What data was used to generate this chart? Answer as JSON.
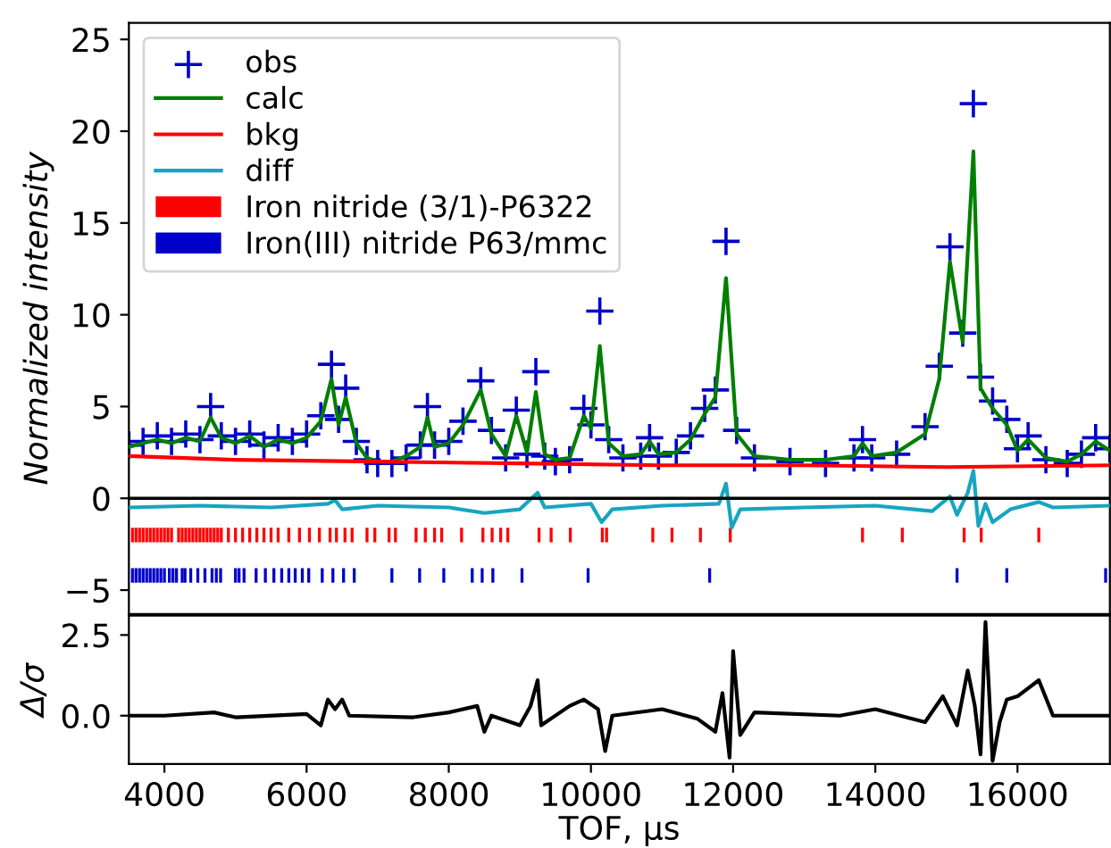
{
  "chart_data": [
    {
      "type": "line",
      "ylabel": "Normalized intensity",
      "xlim": [
        3500,
        17300
      ],
      "ylim": [
        -6.3,
        25.9
      ],
      "xticks": [
        4000,
        6000,
        8000,
        10000,
        12000,
        14000,
        16000
      ],
      "yticks": [
        {
          "value": -5,
          "label": "−5"
        },
        0,
        5,
        10,
        15,
        20,
        25
      ],
      "tick_labels": "y",
      "legend": "top left",
      "grid": false,
      "x": [
        3500,
        3700,
        3900,
        4100,
        4300,
        4500,
        4650,
        4800,
        5000,
        5200,
        5400,
        5600,
        5800,
        6000,
        6200,
        6350,
        6450,
        6550,
        6700,
        6850,
        7000,
        7200,
        7400,
        7600,
        7700,
        7800,
        8000,
        8200,
        8450,
        8600,
        8800,
        8950,
        9100,
        9225,
        9350,
        9500,
        9700,
        9900,
        10000,
        10125,
        10250,
        10450,
        10700,
        10825,
        10950,
        11200,
        11400,
        11600,
        11750,
        11900,
        12050,
        12300,
        12800,
        13300,
        13700,
        13820,
        13950,
        14300,
        14700,
        14900,
        15050,
        15230,
        15380,
        15480,
        15650,
        15850,
        16000,
        16150,
        16400,
        16700,
        16900,
        17100,
        17300
      ],
      "ref_lines": [
        {
          "axis": "y",
          "value": 0,
          "color": "#000000"
        }
      ],
      "series": [
        {
          "name": "obs",
          "type": "scatter",
          "marker": "cross",
          "color": "#0000cc",
          "values": [
            2.9,
            3.1,
            3.4,
            3.1,
            3.5,
            3.2,
            5.0,
            3.4,
            3.1,
            3.5,
            2.9,
            3.3,
            3.1,
            3.5,
            4.5,
            7.3,
            4.3,
            6.0,
            3.1,
            2.1,
            1.9,
            1.9,
            2.2,
            2.9,
            5.0,
            2.9,
            3.1,
            4.2,
            6.4,
            3.7,
            2.2,
            4.8,
            2.4,
            6.9,
            2.3,
            2.0,
            2.1,
            4.9,
            4.0,
            10.2,
            3.2,
            2.2,
            2.3,
            3.3,
            2.3,
            2.5,
            3.4,
            4.9,
            5.9,
            14.0,
            3.7,
            2.2,
            2.0,
            1.9,
            2.2,
            3.2,
            2.2,
            2.4,
            3.9,
            7.2,
            13.7,
            9.0,
            21.5,
            6.6,
            5.3,
            4.3,
            2.7,
            3.4,
            2.1,
            1.9,
            2.4,
            3.3,
            2.7
          ]
        },
        {
          "name": "calc",
          "type": "line",
          "color": "#007f00",
          "values": [
            2.8,
            3.0,
            3.2,
            3.0,
            3.3,
            3.1,
            4.4,
            3.3,
            3.0,
            3.4,
            2.8,
            3.2,
            3.0,
            3.3,
            4.2,
            6.5,
            4.0,
            5.5,
            3.0,
            2.2,
            2.0,
            2.0,
            2.3,
            2.8,
            4.4,
            2.8,
            3.0,
            4.0,
            5.9,
            3.5,
            2.3,
            4.5,
            2.5,
            5.8,
            2.4,
            2.1,
            2.2,
            4.5,
            3.8,
            8.3,
            3.0,
            2.3,
            2.4,
            3.1,
            2.4,
            2.5,
            3.2,
            4.6,
            5.5,
            12.0,
            3.5,
            2.3,
            2.1,
            2.1,
            2.3,
            3.0,
            2.3,
            2.5,
            3.5,
            6.5,
            12.9,
            8.5,
            18.9,
            6.0,
            4.9,
            4.0,
            2.6,
            3.2,
            2.2,
            2.0,
            2.4,
            3.1,
            2.6
          ]
        },
        {
          "name": "bkg",
          "type": "line",
          "color": "#ff0000",
          "x": [
            3500,
            5000,
            7000,
            9000,
            11000,
            13000,
            15000,
            17300
          ],
          "values": [
            2.3,
            2.1,
            2.0,
            1.9,
            1.8,
            1.8,
            1.7,
            1.8
          ]
        },
        {
          "name": "diff",
          "type": "line",
          "color": "#17a5c0",
          "x": [
            3500,
            4500,
            5500,
            6300,
            6400,
            6500,
            7000,
            8000,
            8500,
            9000,
            9250,
            9350,
            10000,
            10150,
            10300,
            11000,
            11800,
            11900,
            11980,
            12100,
            13000,
            14000,
            14800,
            15050,
            15150,
            15300,
            15380,
            15450,
            15550,
            15650,
            15900,
            16300,
            16500,
            17300
          ],
          "values": [
            -0.5,
            -0.4,
            -0.5,
            -0.3,
            -0.1,
            -0.6,
            -0.4,
            -0.5,
            -0.8,
            -0.6,
            0.3,
            -0.5,
            -0.3,
            -1.3,
            -0.6,
            -0.4,
            -0.3,
            0.8,
            -1.6,
            -0.6,
            -0.5,
            -0.4,
            -0.7,
            0.1,
            -0.9,
            0.3,
            1.5,
            -1.5,
            -0.3,
            -1.3,
            -0.6,
            -0.2,
            -0.5,
            -0.4
          ]
        },
        {
          "name": "Iron nitride (3/1)-P6322",
          "type": "bar",
          "base": [
            -2.4,
            -2.4,
            -2.4,
            -2.4,
            -2.4,
            -2.4,
            -2.4,
            -2.4,
            -2.4,
            -2.4,
            -2.4,
            -2.4,
            -2.4,
            -2.4,
            -2.4,
            -2.4,
            -2.4,
            -2.4,
            -2.4,
            -2.4,
            -2.4,
            -2.4,
            -2.4,
            -2.4,
            -2.4,
            -2.4,
            -2.4,
            -2.4,
            -2.4,
            -2.4,
            -2.4,
            -2.4,
            -2.4,
            -2.4,
            -2.4,
            -2.4,
            -2.4,
            -2.4,
            -2.4,
            -2.4,
            -2.4,
            -2.4,
            -2.4,
            -2.4,
            -2.4,
            -2.4,
            -2.4,
            -2.4,
            -2.4,
            -2.4,
            -2.4,
            -2.4,
            -2.4,
            -2.4,
            -2.4,
            -2.4,
            -2.4,
            -2.4,
            -2.4,
            -2.4,
            -2.4,
            -2.4,
            -2.4,
            -2.4,
            -2.4,
            -2.4,
            -2.4,
            -2.4
          ],
          "color": "#ff0000",
          "x": [
            3550,
            3600,
            3650,
            3700,
            3750,
            3800,
            3850,
            3900,
            3950,
            4000,
            4050,
            4100,
            4200,
            4250,
            4300,
            4350,
            4400,
            4450,
            4500,
            4550,
            4600,
            4650,
            4700,
            4750,
            4800,
            4900,
            5000,
            5100,
            5200,
            5300,
            5400,
            5500,
            5600,
            5750,
            5900,
            6040,
            6180,
            6330,
            6420,
            6540,
            6640,
            6850,
            6960,
            7160,
            7250,
            7540,
            7670,
            7800,
            7900,
            8180,
            8480,
            8610,
            8730,
            8830,
            9270,
            9440,
            9710,
            10160,
            10220,
            10870,
            11140,
            11540,
            11960,
            13820,
            14380,
            15250,
            15490,
            16300
          ],
          "values": [
            0.8,
            0.8,
            0.8,
            0.8,
            0.8,
            0.8,
            0.8,
            0.8,
            0.8,
            0.8,
            0.8,
            0.8,
            0.8,
            0.8,
            0.8,
            0.8,
            0.8,
            0.8,
            0.8,
            0.8,
            0.8,
            0.8,
            0.8,
            0.8,
            0.8,
            0.8,
            0.8,
            0.8,
            0.8,
            0.8,
            0.8,
            0.8,
            0.8,
            0.8,
            0.8,
            0.8,
            0.8,
            0.8,
            0.8,
            0.8,
            0.8,
            0.8,
            0.8,
            0.8,
            0.8,
            0.8,
            0.8,
            0.8,
            0.8,
            0.8,
            0.8,
            0.8,
            0.8,
            0.8,
            0.8,
            0.8,
            0.8,
            0.8,
            0.8,
            0.8,
            0.8,
            0.8,
            0.8,
            0.8,
            0.8,
            0.8,
            0.8,
            0.8
          ]
        },
        {
          "name": "Iron(III) nitride P63/mmc",
          "type": "bar",
          "base": [
            -4.6,
            -4.6,
            -4.6,
            -4.6,
            -4.6,
            -4.6,
            -4.6,
            -4.6,
            -4.6,
            -4.6,
            -4.6,
            -4.6,
            -4.6,
            -4.6,
            -4.6,
            -4.6,
            -4.6,
            -4.6,
            -4.6,
            -4.6,
            -4.6,
            -4.6,
            -4.6,
            -4.6,
            -4.6,
            -4.6,
            -4.6,
            -4.6,
            -4.6,
            -4.6,
            -4.6,
            -4.6,
            -4.6,
            -4.6,
            -4.6,
            -4.6,
            -4.6,
            -4.6,
            -4.6,
            -4.6,
            -4.6,
            -4.6,
            -4.6,
            -4.6,
            -4.6,
            -4.6,
            -4.6,
            -4.6
          ],
          "color": "#0000cc",
          "x": [
            3550,
            3600,
            3650,
            3700,
            3750,
            3800,
            3850,
            3900,
            3950,
            4000,
            4070,
            4120,
            4170,
            4250,
            4290,
            4370,
            4470,
            4570,
            4670,
            4730,
            4790,
            5000,
            5050,
            5120,
            5290,
            5420,
            5540,
            5650,
            5750,
            5840,
            5940,
            6030,
            6220,
            6370,
            6520,
            6670,
            7200,
            7590,
            7930,
            8330,
            8470,
            8620,
            9030,
            9960,
            11670,
            15150,
            15850,
            17240
          ],
          "values": [
            0.8,
            0.8,
            0.8,
            0.8,
            0.8,
            0.8,
            0.8,
            0.8,
            0.8,
            0.8,
            0.8,
            0.8,
            0.8,
            0.8,
            0.8,
            0.8,
            0.8,
            0.8,
            0.8,
            0.8,
            0.8,
            0.8,
            0.8,
            0.8,
            0.8,
            0.8,
            0.8,
            0.8,
            0.8,
            0.8,
            0.8,
            0.8,
            0.8,
            0.8,
            0.8,
            0.8,
            0.8,
            0.8,
            0.8,
            0.8,
            0.8,
            0.8,
            0.8,
            0.8,
            0.8,
            0.8,
            0.8,
            0.8
          ]
        }
      ]
    },
    {
      "type": "line",
      "ylabel": "Δ/σ",
      "xlabel": "TOF, µs",
      "xlim": [
        3500,
        17300
      ],
      "ylim": [
        -1.5,
        3.1
      ],
      "xticks": [
        4000,
        6000,
        8000,
        10000,
        12000,
        14000,
        16000
      ],
      "yticks": [
        {
          "value": 0,
          "label": "0.0"
        },
        {
          "value": 2.5,
          "label": "2.5"
        }
      ],
      "grid": false,
      "series": [
        {
          "type": "line",
          "color": "#000000",
          "x": [
            3500,
            4000,
            4700,
            5000,
            6000,
            6200,
            6300,
            6400,
            6500,
            6600,
            7500,
            8000,
            8400,
            8500,
            8600,
            9000,
            9150,
            9250,
            9300,
            9700,
            9900,
            10100,
            10200,
            10300,
            11000,
            11500,
            11750,
            11850,
            11950,
            12000,
            12100,
            12300,
            13500,
            14000,
            14700,
            14950,
            15150,
            15300,
            15400,
            15480,
            15550,
            15650,
            15750,
            15850,
            16000,
            16300,
            16500,
            17300
          ],
          "values": [
            0,
            0,
            0.1,
            -0.05,
            0.05,
            -0.3,
            0.5,
            0.2,
            0.5,
            0,
            -0.05,
            0.1,
            0.3,
            -0.5,
            0,
            -0.3,
            0.3,
            1.1,
            -0.3,
            0.3,
            0.5,
            0.2,
            -1.1,
            0.0,
            0.2,
            -0.1,
            -0.5,
            0.7,
            -1.3,
            2.0,
            -0.6,
            0.1,
            0.0,
            0.2,
            -0.2,
            0.6,
            -0.3,
            1.4,
            0.3,
            -1.2,
            2.9,
            -1.4,
            -0.2,
            0.5,
            0.6,
            1.1,
            0.0,
            0.0
          ]
        }
      ]
    }
  ]
}
